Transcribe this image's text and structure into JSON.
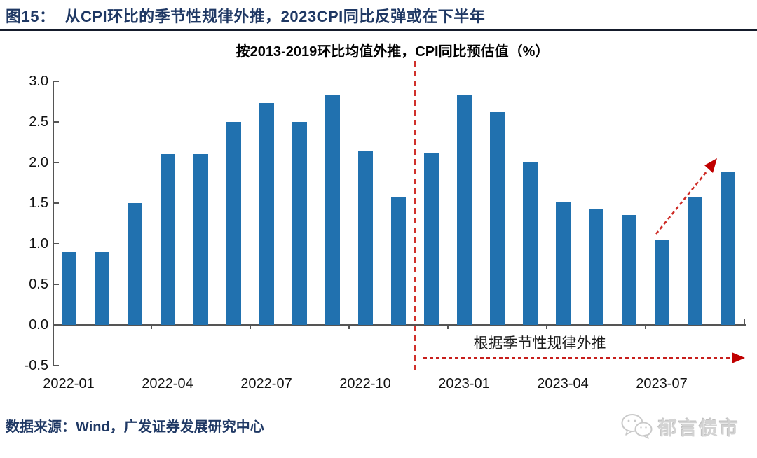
{
  "header": {
    "figure_label": "图15：",
    "title": "从CPI环比的季节性规律外推，2023CPI同比反弹或在下半年"
  },
  "chart_data": {
    "type": "bar",
    "title": "按2013-2019环比均值外推，CPI同比预估值（%）",
    "categories": [
      "2022-01",
      "2022-02",
      "2022-03",
      "2022-04",
      "2022-05",
      "2022-06",
      "2022-07",
      "2022-08",
      "2022-09",
      "2022-10",
      "2022-11",
      "2022-12",
      "2023-01",
      "2023-02",
      "2023-03",
      "2023-04",
      "2023-05",
      "2023-06",
      "2023-07",
      "2023-08",
      "2023-09"
    ],
    "values": [
      0.9,
      0.9,
      1.5,
      2.1,
      2.1,
      2.5,
      2.73,
      2.5,
      2.83,
      2.15,
      1.57,
      2.12,
      2.83,
      2.62,
      2.0,
      1.52,
      1.42,
      1.35,
      1.05,
      1.58,
      1.89
    ],
    "xtick_labels": [
      "2022-01",
      "2022-04",
      "2022-07",
      "2022-10",
      "2023-01",
      "2023-04",
      "2023-07"
    ],
    "ytick_labels": [
      "3.0",
      "2.5",
      "2.0",
      "1.5",
      "1.0",
      "0.5",
      "0.0",
      "-0.5"
    ],
    "ylim": [
      -0.5,
      3.0
    ],
    "ytick_step": 0.5,
    "grid": false,
    "legend": "none",
    "bar_color": "#2171AF",
    "forecast_divider_after": "2022-11",
    "forecast_annotation": "根据季节性规律外推",
    "annotation_color": "#C00000"
  },
  "footer": {
    "source": "数据来源：Wind，广发证券发展研究中心",
    "logo_icon": "wechat-icon",
    "logo_text": "郁言债市"
  }
}
